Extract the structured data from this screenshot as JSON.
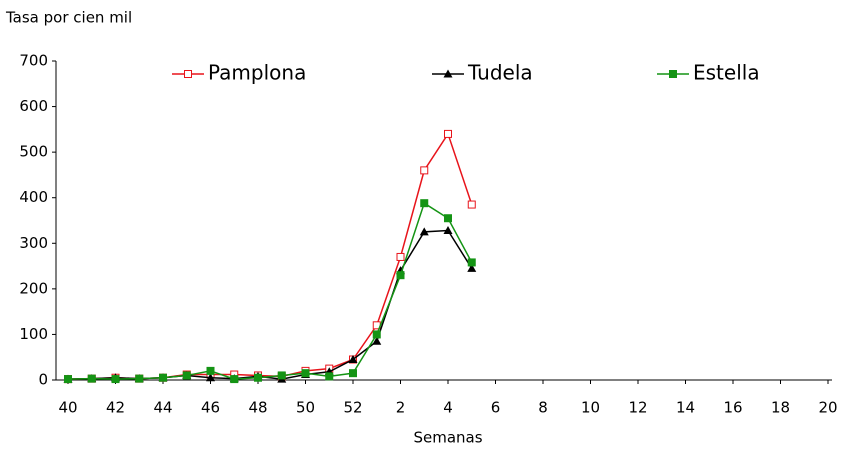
{
  "chart_data": {
    "type": "line",
    "y_axis_label": "Tasa por cien mil",
    "x_axis_label": "Semanas",
    "categories": [
      "40",
      null,
      "42",
      null,
      "44",
      null,
      "46",
      null,
      "48",
      null,
      "50",
      null,
      "52",
      null,
      "2",
      null,
      "4",
      null,
      "6",
      null,
      "8",
      null,
      "10",
      null,
      "12",
      null,
      "14",
      null,
      "16",
      null,
      "18",
      null,
      "20"
    ],
    "series": [
      {
        "name": "Pamplona",
        "color": "#e8141b",
        "marker": "square-open",
        "values": [
          2,
          3,
          5,
          3,
          5,
          12,
          12,
          12,
          10,
          8,
          20,
          25,
          45,
          120,
          270,
          460,
          540,
          385,
          null,
          null,
          null,
          null,
          null,
          null,
          null,
          null,
          null,
          null,
          null,
          null,
          null,
          null,
          null
        ]
      },
      {
        "name": "Tudela",
        "color": "#000000",
        "marker": "triangle",
        "values": [
          2,
          3,
          5,
          3,
          5,
          10,
          5,
          3,
          8,
          2,
          12,
          18,
          45,
          85,
          240,
          325,
          328,
          245,
          null,
          null,
          null,
          null,
          null,
          null,
          null,
          null,
          null,
          null,
          null,
          null,
          null,
          null,
          null
        ]
      },
      {
        "name": "Estella",
        "color": "#149414",
        "marker": "square",
        "values": [
          2,
          3,
          2,
          3,
          5,
          10,
          20,
          2,
          5,
          10,
          15,
          8,
          15,
          100,
          230,
          388,
          355,
          258,
          null,
          null,
          null,
          null,
          null,
          null,
          null,
          null,
          null,
          null,
          null,
          null,
          null,
          null,
          null
        ]
      }
    ],
    "ylim": [
      0,
      700
    ],
    "yticks": [
      0,
      100,
      200,
      300,
      400,
      500,
      600,
      700
    ],
    "grid": false,
    "legend": "top"
  }
}
